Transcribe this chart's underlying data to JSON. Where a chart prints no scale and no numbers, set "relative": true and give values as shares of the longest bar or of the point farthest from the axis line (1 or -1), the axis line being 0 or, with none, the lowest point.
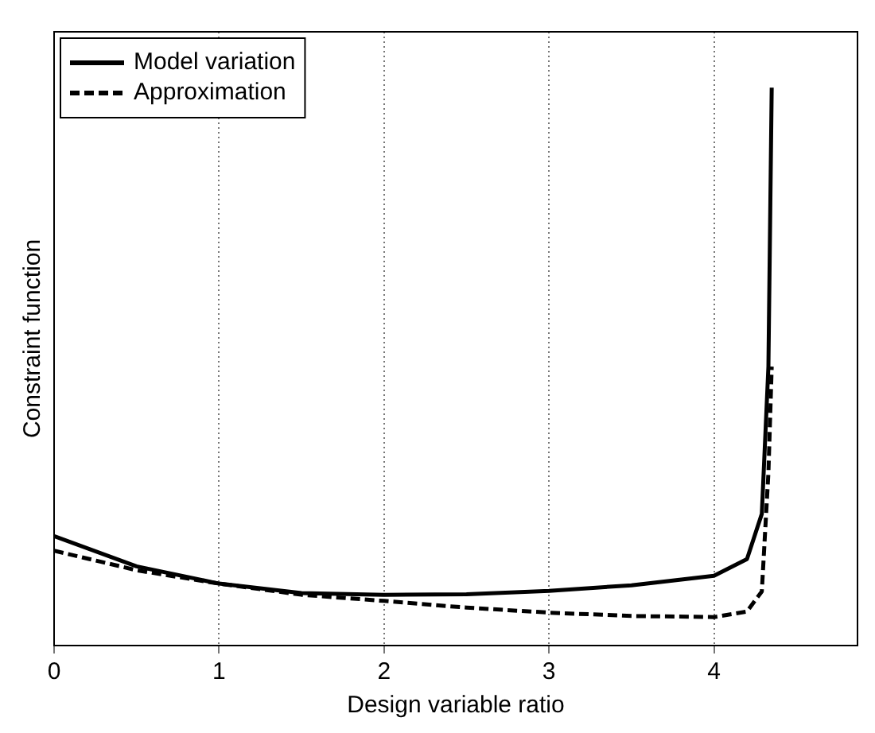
{
  "chart_data": {
    "type": "line",
    "xlabel": "Design variable ratio",
    "ylabel": "Constraint function",
    "relative": true,
    "xlim": [
      0,
      4.87
    ],
    "xticks": [
      0,
      1,
      2,
      3,
      4
    ],
    "grid": "x",
    "legend": "top left",
    "marker": "none",
    "series": [
      {
        "name": "Model variation",
        "color": "#000000",
        "line_style": "solid",
        "x": [
          0,
          0.5,
          1,
          1.5,
          2,
          2.5,
          3,
          3.5,
          4,
          4.2,
          4.29,
          4.33,
          4.35
        ],
        "values": [
          0.196,
          0.142,
          0.111,
          0.094,
          0.091,
          0.092,
          0.098,
          0.108,
          0.125,
          0.155,
          0.236,
          0.5,
          1.0
        ]
      },
      {
        "name": "Approximation",
        "color": "#000000",
        "line_style": "dashed",
        "x": [
          0,
          0.5,
          1,
          1.5,
          2,
          2.5,
          3,
          3.5,
          4,
          4.2,
          4.29,
          4.33,
          4.35
        ],
        "values": [
          0.17,
          0.135,
          0.111,
          0.091,
          0.08,
          0.068,
          0.059,
          0.053,
          0.051,
          0.061,
          0.097,
          0.31,
          0.5
        ]
      }
    ]
  }
}
